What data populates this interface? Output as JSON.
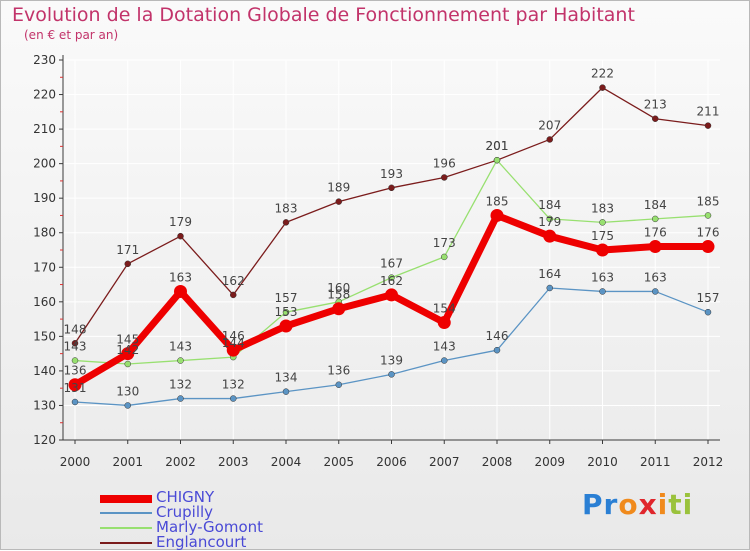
{
  "title": "Evolution de la Dotation Globale de Fonctionnement par Habitant",
  "subtitle": "(en € et par an)",
  "colors": {
    "title": "#c2336a",
    "axis": "#3a3a3a",
    "grid": "#ffffff",
    "legend_text": "#4a4ad6"
  },
  "chart_data": {
    "type": "line",
    "x": [
      "2000",
      "2001",
      "2002",
      "2003",
      "2004",
      "2005",
      "2006",
      "2007",
      "2008",
      "2009",
      "2010",
      "2011",
      "2012"
    ],
    "ylim": [
      120,
      230
    ],
    "yticks": [
      120,
      130,
      140,
      150,
      160,
      170,
      180,
      190,
      200,
      210,
      220,
      230
    ],
    "grid": true,
    "legend_position": "bottom-left",
    "series": [
      {
        "name": "Englancourt",
        "color": "#7b1c1c",
        "values": [
          148,
          171,
          179,
          162,
          183,
          189,
          193,
          196,
          201,
          207,
          222,
          213,
          211
        ]
      },
      {
        "name": "Marly-Gomont",
        "color": "#98e070",
        "values": [
          143,
          142,
          143,
          144,
          157,
          160,
          167,
          173,
          201,
          184,
          183,
          184,
          185
        ]
      },
      {
        "name": "Crupilly",
        "color": "#5b94c4",
        "values": [
          131,
          130,
          132,
          132,
          134,
          136,
          139,
          143,
          146,
          164,
          163,
          163,
          157
        ]
      },
      {
        "name": "CHIGNY",
        "color": "#ee0000",
        "values": [
          136,
          145,
          163,
          146,
          153,
          158,
          162,
          154,
          185,
          179,
          175,
          176,
          176
        ]
      }
    ]
  },
  "legend": [
    {
      "label": "CHIGNY",
      "color": "#ee0000"
    },
    {
      "label": "Crupilly",
      "color": "#5b94c4"
    },
    {
      "label": "Marly-Gomont",
      "color": "#98e070"
    },
    {
      "label": "Englancourt",
      "color": "#7b1c1c"
    }
  ],
  "logo": {
    "letters": [
      "P",
      "r",
      "o",
      "x",
      "i",
      "t",
      "i"
    ],
    "colors": [
      "#2a7fd4",
      "#2a7fd4",
      "#f08a1c",
      "#e0262c",
      "#f08a1c",
      "#9ac23c",
      "#9ac23c"
    ]
  }
}
